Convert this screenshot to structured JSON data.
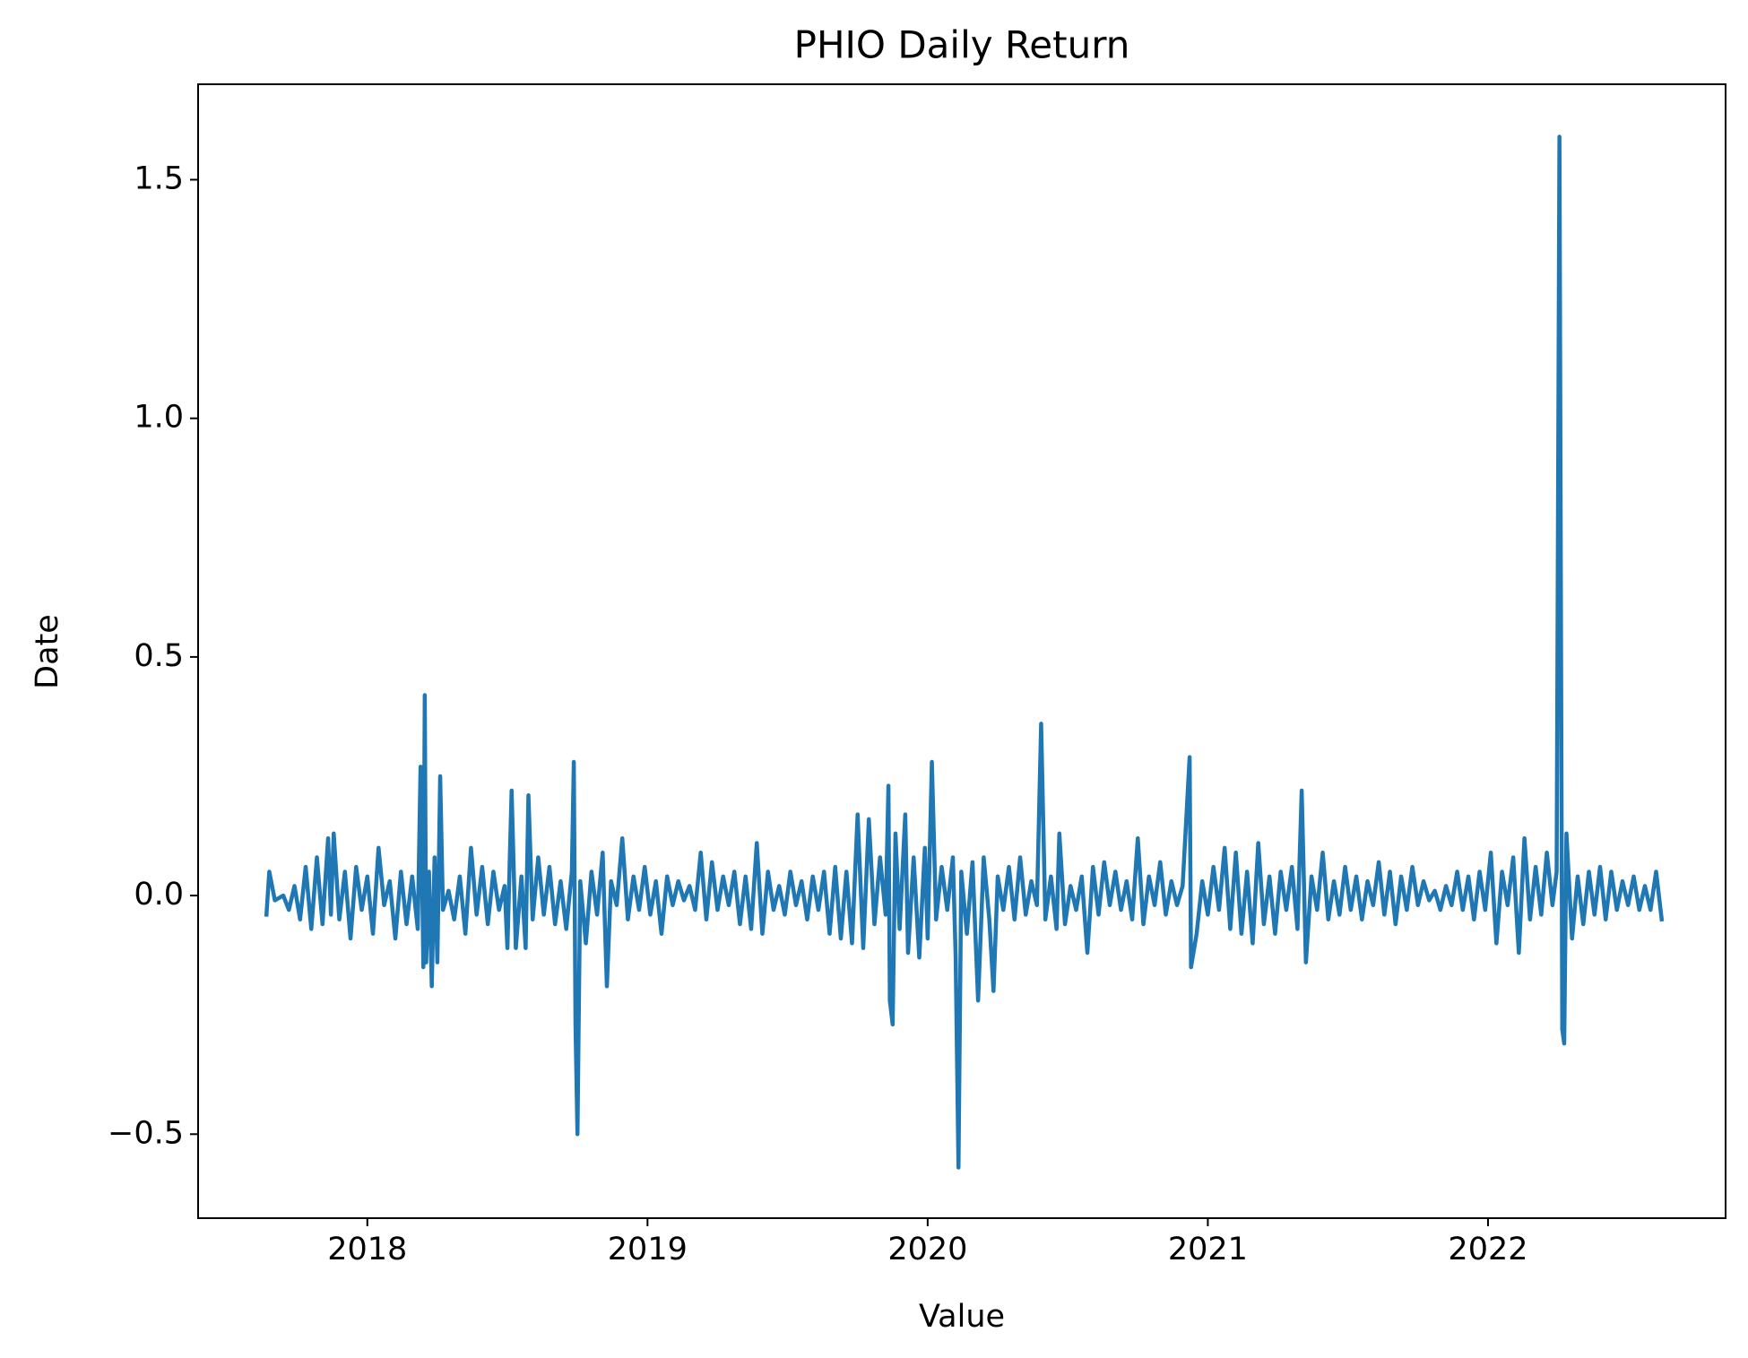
{
  "chart_data": {
    "type": "line",
    "title": "PHIO Daily Return",
    "x_label": "Value",
    "y_label": "Date",
    "xlim": [
      2017.396,
      2022.848
    ],
    "xticks": [
      2018,
      2019,
      2020,
      2021,
      2022
    ],
    "ylim": [
      -0.676,
      1.7
    ],
    "yticks": [
      {
        "value": -0.5,
        "label": "−0.5"
      },
      {
        "value": 0,
        "label": "0.0"
      },
      0.5,
      {
        "value": 1,
        "label": "1.0"
      },
      1.5
    ],
    "x": [
      2017.64,
      2017.65,
      2017.67,
      2017.7,
      2017.72,
      2017.74,
      2017.76,
      2017.78,
      2017.8,
      2017.82,
      2017.84,
      2017.86,
      2017.87,
      2017.88,
      2017.9,
      2017.92,
      2017.94,
      2017.96,
      2017.98,
      2018.0,
      2018.02,
      2018.04,
      2018.06,
      2018.08,
      2018.1,
      2018.12,
      2018.14,
      2018.16,
      2018.18,
      2018.19,
      2018.2,
      2018.205,
      2018.21,
      2018.22,
      2018.23,
      2018.24,
      2018.25,
      2018.26,
      2018.27,
      2018.29,
      2018.31,
      2018.33,
      2018.35,
      2018.37,
      2018.39,
      2018.41,
      2018.43,
      2018.45,
      2018.47,
      2018.49,
      2018.5,
      2018.515,
      2018.53,
      2018.55,
      2018.565,
      2018.575,
      2018.59,
      2018.61,
      2018.63,
      2018.65,
      2018.67,
      2018.69,
      2018.71,
      2018.73,
      2018.737,
      2018.743,
      2018.75,
      2018.76,
      2018.78,
      2018.8,
      2018.82,
      2018.84,
      2018.855,
      2018.87,
      2018.89,
      2018.91,
      2018.93,
      2018.95,
      2018.97,
      2018.99,
      2019.01,
      2019.03,
      2019.05,
      2019.07,
      2019.09,
      2019.11,
      2019.13,
      2019.15,
      2019.17,
      2019.19,
      2019.21,
      2019.23,
      2019.25,
      2019.27,
      2019.29,
      2019.31,
      2019.33,
      2019.35,
      2019.37,
      2019.39,
      2019.41,
      2019.43,
      2019.45,
      2019.47,
      2019.49,
      2019.51,
      2019.53,
      2019.55,
      2019.57,
      2019.59,
      2019.61,
      2019.63,
      2019.65,
      2019.67,
      2019.69,
      2019.71,
      2019.73,
      2019.75,
      2019.77,
      2019.79,
      2019.81,
      2019.83,
      2019.85,
      2019.86,
      2019.865,
      2019.875,
      2019.885,
      2019.9,
      2019.92,
      2019.93,
      2019.95,
      2019.97,
      2019.99,
      2020.0,
      2020.015,
      2020.03,
      2020.05,
      2020.07,
      2020.09,
      2020.1,
      2020.11,
      2020.12,
      2020.14,
      2020.16,
      2020.18,
      2020.2,
      2020.22,
      2020.235,
      2020.25,
      2020.27,
      2020.29,
      2020.31,
      2020.33,
      2020.35,
      2020.37,
      2020.39,
      2020.405,
      2020.42,
      2020.44,
      2020.46,
      2020.47,
      2020.49,
      2020.51,
      2020.53,
      2020.55,
      2020.57,
      2020.59,
      2020.61,
      2020.63,
      2020.65,
      2020.67,
      2020.69,
      2020.71,
      2020.73,
      2020.75,
      2020.77,
      2020.79,
      2020.81,
      2020.83,
      2020.85,
      2020.87,
      2020.89,
      2020.91,
      2020.935,
      2020.94,
      2020.96,
      2020.98,
      2021.0,
      2021.02,
      2021.04,
      2021.06,
      2021.08,
      2021.1,
      2021.12,
      2021.14,
      2021.16,
      2021.18,
      2021.2,
      2021.22,
      2021.24,
      2021.26,
      2021.28,
      2021.3,
      2021.32,
      2021.335,
      2021.35,
      2021.37,
      2021.39,
      2021.41,
      2021.43,
      2021.45,
      2021.47,
      2021.49,
      2021.51,
      2021.53,
      2021.55,
      2021.57,
      2021.59,
      2021.61,
      2021.63,
      2021.65,
      2021.67,
      2021.69,
      2021.71,
      2021.73,
      2021.75,
      2021.77,
      2021.79,
      2021.81,
      2021.83,
      2021.85,
      2021.87,
      2021.89,
      2021.91,
      2021.93,
      2021.95,
      2021.97,
      2021.99,
      2022.01,
      2022.03,
      2022.05,
      2022.07,
      2022.09,
      2022.11,
      2022.13,
      2022.15,
      2022.17,
      2022.19,
      2022.21,
      2022.23,
      2022.245,
      2022.255,
      2022.265,
      2022.272,
      2022.28,
      2022.3,
      2022.32,
      2022.34,
      2022.36,
      2022.38,
      2022.4,
      2022.42,
      2022.44,
      2022.46,
      2022.48,
      2022.5,
      2022.52,
      2022.54,
      2022.56,
      2022.58,
      2022.6,
      2022.62
    ],
    "series": [
      {
        "color": "#1f77b4",
        "values": [
          -0.04,
          0.05,
          -0.01,
          0.0,
          -0.03,
          0.02,
          -0.05,
          0.06,
          -0.07,
          0.08,
          -0.06,
          0.12,
          -0.04,
          0.13,
          -0.05,
          0.05,
          -0.09,
          0.06,
          -0.03,
          0.04,
          -0.08,
          0.1,
          -0.02,
          0.03,
          -0.09,
          0.05,
          -0.06,
          0.04,
          -0.07,
          0.27,
          -0.15,
          0.42,
          -0.14,
          0.05,
          -0.19,
          0.08,
          -0.14,
          0.25,
          -0.03,
          0.01,
          -0.05,
          0.04,
          -0.08,
          0.1,
          -0.04,
          0.06,
          -0.06,
          0.05,
          -0.03,
          0.02,
          -0.11,
          0.22,
          -0.11,
          0.04,
          -0.11,
          0.21,
          -0.05,
          0.08,
          -0.04,
          0.06,
          -0.06,
          0.03,
          -0.07,
          0.05,
          0.28,
          -0.27,
          -0.5,
          0.03,
          -0.1,
          0.05,
          -0.04,
          0.09,
          -0.19,
          0.03,
          -0.02,
          0.12,
          -0.05,
          0.04,
          -0.03,
          0.06,
          -0.04,
          0.03,
          -0.08,
          0.04,
          -0.02,
          0.03,
          -0.01,
          0.02,
          -0.03,
          0.09,
          -0.05,
          0.07,
          -0.03,
          0.04,
          -0.02,
          0.05,
          -0.06,
          0.04,
          -0.07,
          0.11,
          -0.08,
          0.05,
          -0.03,
          0.02,
          -0.04,
          0.05,
          -0.02,
          0.03,
          -0.05,
          0.04,
          -0.03,
          0.05,
          -0.08,
          0.06,
          -0.09,
          0.05,
          -0.1,
          0.17,
          -0.11,
          0.16,
          -0.06,
          0.08,
          -0.04,
          0.23,
          -0.22,
          -0.27,
          0.13,
          -0.07,
          0.17,
          -0.12,
          0.08,
          -0.13,
          0.1,
          -0.09,
          0.28,
          -0.05,
          0.06,
          -0.03,
          0.08,
          -0.13,
          -0.57,
          0.05,
          -0.08,
          0.07,
          -0.22,
          0.08,
          -0.05,
          -0.2,
          0.04,
          -0.03,
          0.06,
          -0.05,
          0.08,
          -0.04,
          0.03,
          -0.02,
          0.36,
          -0.05,
          0.04,
          -0.07,
          0.13,
          -0.06,
          0.02,
          -0.03,
          0.04,
          -0.12,
          0.06,
          -0.04,
          0.07,
          -0.02,
          0.05,
          -0.03,
          0.03,
          -0.05,
          0.12,
          -0.06,
          0.04,
          -0.02,
          0.07,
          -0.04,
          0.03,
          -0.02,
          0.02,
          0.29,
          -0.15,
          -0.08,
          0.03,
          -0.04,
          0.06,
          -0.03,
          0.1,
          -0.07,
          0.09,
          -0.08,
          0.05,
          -0.1,
          0.11,
          -0.06,
          0.04,
          -0.08,
          0.05,
          -0.03,
          0.06,
          -0.07,
          0.22,
          -0.14,
          0.04,
          -0.03,
          0.09,
          -0.05,
          0.03,
          -0.04,
          0.06,
          -0.03,
          0.04,
          -0.05,
          0.03,
          -0.02,
          0.07,
          -0.04,
          0.05,
          -0.06,
          0.04,
          -0.03,
          0.06,
          -0.02,
          0.03,
          -0.01,
          0.01,
          -0.03,
          0.02,
          -0.02,
          0.05,
          -0.03,
          0.04,
          -0.05,
          0.05,
          -0.03,
          0.09,
          -0.1,
          0.05,
          -0.02,
          0.08,
          -0.12,
          0.12,
          -0.05,
          0.06,
          -0.04,
          0.09,
          -0.02,
          0.05,
          1.59,
          -0.28,
          -0.31,
          0.13,
          -0.09,
          0.04,
          -0.06,
          0.05,
          -0.04,
          0.06,
          -0.05,
          0.05,
          -0.03,
          0.03,
          -0.02,
          0.04,
          -0.03,
          0.02,
          -0.03,
          0.05,
          -0.05
        ]
      }
    ]
  }
}
